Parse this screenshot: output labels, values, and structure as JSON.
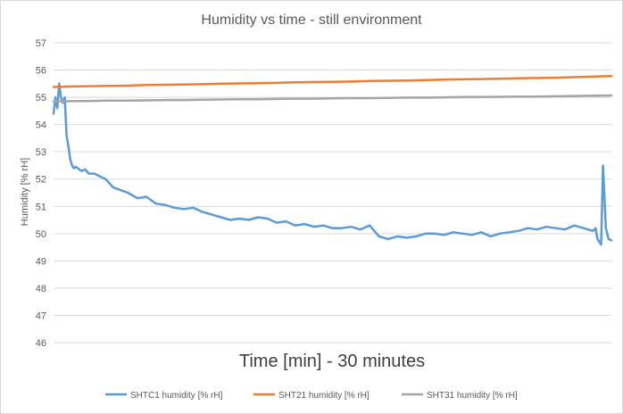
{
  "chart_data": {
    "type": "line",
    "title": "Humidity vs time - still environment",
    "xlabel": "Time [min] - 30 minutes",
    "ylabel": "Humidity [% rH]",
    "ylim": [
      46,
      57
    ],
    "yticks": [
      "46",
      "47",
      "48",
      "49",
      "50",
      "51",
      "52",
      "53",
      "54",
      "55",
      "56",
      "57"
    ],
    "xlim": [
      0,
      30
    ],
    "grid": true,
    "legend_position": "bottom",
    "series": [
      {
        "name": "SHTC1 humidity [% rH]",
        "color": "#5b9bd5",
        "x": [
          0,
          0.1,
          0.2,
          0.3,
          0.4,
          0.5,
          0.6,
          0.7,
          0.8,
          0.9,
          1.0,
          1.1,
          1.2,
          1.3,
          1.5,
          1.7,
          1.9,
          2.2,
          2.5,
          2.8,
          3.2,
          3.6,
          4.0,
          4.5,
          5.0,
          5.5,
          6.0,
          6.5,
          7.0,
          7.5,
          8.0,
          8.5,
          9.0,
          9.5,
          10.0,
          10.5,
          11.0,
          11.5,
          12.0,
          12.5,
          13.0,
          13.5,
          14.0,
          14.5,
          15.0,
          15.5,
          16.0,
          16.5,
          17.0,
          17.5,
          18.0,
          18.5,
          19.0,
          19.5,
          20.0,
          20.5,
          21.0,
          21.5,
          22.0,
          22.5,
          23.0,
          23.5,
          24.0,
          24.5,
          25.0,
          25.5,
          26.0,
          26.5,
          27.0,
          27.5,
          28.0,
          28.5,
          29.0,
          29.15,
          29.25,
          29.35,
          29.45,
          29.55,
          29.7,
          29.85,
          30.0
        ],
        "values": [
          54.4,
          55.0,
          54.6,
          55.5,
          55.0,
          54.8,
          55.0,
          53.6,
          53.2,
          52.7,
          52.5,
          52.4,
          52.45,
          52.4,
          52.3,
          52.35,
          52.2,
          52.2,
          52.1,
          52.0,
          51.7,
          51.6,
          51.5,
          51.3,
          51.35,
          51.1,
          51.05,
          50.95,
          50.9,
          50.95,
          50.8,
          50.7,
          50.6,
          50.5,
          50.55,
          50.5,
          50.6,
          50.55,
          50.4,
          50.45,
          50.3,
          50.35,
          50.25,
          50.3,
          50.2,
          50.2,
          50.25,
          50.15,
          50.3,
          49.9,
          49.8,
          49.9,
          49.85,
          49.9,
          50.0,
          50.0,
          49.95,
          50.05,
          50.0,
          49.95,
          50.05,
          49.9,
          50.0,
          50.05,
          50.1,
          50.2,
          50.15,
          50.25,
          50.2,
          50.15,
          50.3,
          50.2,
          50.1,
          50.2,
          49.8,
          49.7,
          49.6,
          52.5,
          50.2,
          49.8,
          49.75
        ]
      },
      {
        "name": "SHT21 humidity [% rH]",
        "color": "#ed7d31",
        "x": [
          0,
          1,
          2,
          3,
          4,
          5,
          6,
          7,
          8,
          9,
          10,
          11,
          12,
          13,
          14,
          15,
          16,
          17,
          18,
          19,
          20,
          21,
          22,
          23,
          24,
          25,
          26,
          27,
          28,
          29,
          30
        ],
        "values": [
          55.38,
          55.4,
          55.41,
          55.42,
          55.43,
          55.45,
          55.46,
          55.47,
          55.48,
          55.5,
          55.51,
          55.52,
          55.53,
          55.55,
          55.56,
          55.57,
          55.58,
          55.6,
          55.61,
          55.62,
          55.63,
          55.65,
          55.66,
          55.67,
          55.68,
          55.7,
          55.71,
          55.72,
          55.74,
          55.76,
          55.78
        ]
      },
      {
        "name": "SHT31 humidity [% rH]",
        "color": "#a5a5a5",
        "x": [
          0,
          1,
          2,
          3,
          4,
          5,
          6,
          7,
          8,
          9,
          10,
          11,
          12,
          13,
          14,
          15,
          16,
          17,
          18,
          19,
          20,
          21,
          22,
          23,
          24,
          25,
          26,
          27,
          28,
          29,
          30
        ],
        "values": [
          54.85,
          54.86,
          54.87,
          54.88,
          54.88,
          54.89,
          54.9,
          54.9,
          54.91,
          54.92,
          54.93,
          54.93,
          54.94,
          54.95,
          54.95,
          54.96,
          54.97,
          54.97,
          54.98,
          54.99,
          54.99,
          55.0,
          55.01,
          55.01,
          55.02,
          55.03,
          55.03,
          55.04,
          55.05,
          55.06,
          55.07
        ]
      }
    ]
  }
}
